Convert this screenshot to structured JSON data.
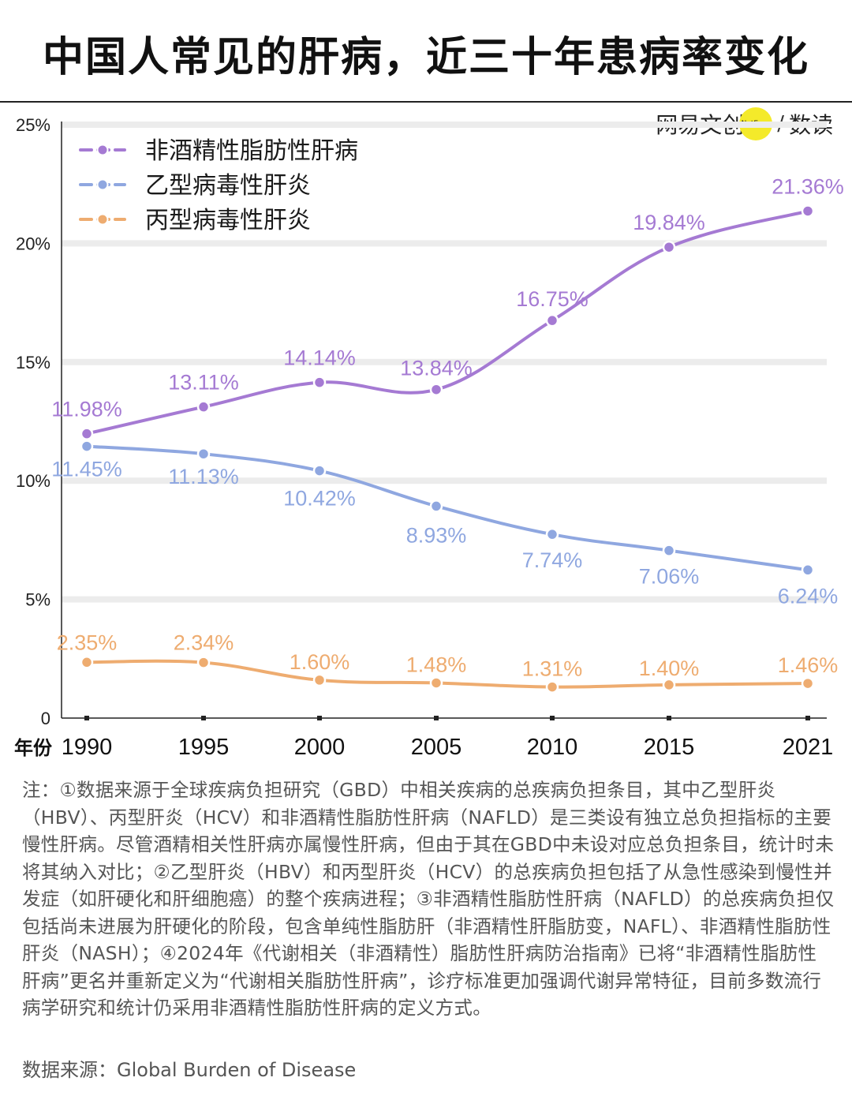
{
  "title": "中国人常见的肝病，近三十年患病率变化",
  "brand": {
    "name": "网易文创",
    "badge": "NetEase",
    "sub": "数读",
    "slash": "/"
  },
  "colors": {
    "nafld": "#a57ad3",
    "hbv": "#8fa7e0",
    "hcv": "#eeac70",
    "grid": "#ececec",
    "axis": "#222222"
  },
  "chart_data": {
    "type": "line",
    "title": "中国人常见的肝病，近三十年患病率变化",
    "xlabel": "年份",
    "ylabel": "",
    "x": [
      1990,
      1995,
      2000,
      2005,
      2010,
      2015,
      2021
    ],
    "x_tick_labels": [
      "1990",
      "1995",
      "2000",
      "2005",
      "2010",
      "2015",
      "2021"
    ],
    "y_ticks": [
      0,
      5,
      10,
      15,
      20,
      25
    ],
    "y_tick_labels": [
      "0",
      "5%",
      "10%",
      "15%",
      "20%",
      "25%"
    ],
    "ylim": [
      0,
      25
    ],
    "grid": true,
    "legend_position": "top-left",
    "series": [
      {
        "name": "非酒精性脂肪性肝病",
        "color": "#a57ad3",
        "values": [
          11.98,
          13.11,
          14.14,
          13.84,
          16.75,
          19.84,
          21.36
        ],
        "labels": [
          "11.98%",
          "13.11%",
          "14.14%",
          "13.84%",
          "16.75%",
          "19.84%",
          "21.36%"
        ]
      },
      {
        "name": "乙型病毒性肝炎",
        "color": "#8fa7e0",
        "values": [
          11.45,
          11.13,
          10.42,
          8.93,
          7.74,
          7.06,
          6.24
        ],
        "labels": [
          "11.45%",
          "11.13%",
          "10.42%",
          "8.93%",
          "7.74%",
          "7.06%",
          "6.24%"
        ]
      },
      {
        "name": "丙型病毒性肝炎",
        "color": "#eeac70",
        "values": [
          2.35,
          2.34,
          1.6,
          1.48,
          1.31,
          1.4,
          1.46
        ],
        "labels": [
          "2.35%",
          "2.34%",
          "1.60%",
          "1.48%",
          "1.31%",
          "1.40%",
          "1.46%"
        ]
      }
    ]
  },
  "notes": "注：①数据来源于全球疾病负担研究（GBD）中相关疾病的总疾病负担条目，其中乙型肝炎（HBV）、丙型肝炎（HCV）和非酒精性脂肪性肝病（NAFLD）是三类设有独立总负担指标的主要慢性肝病。尽管酒精相关性肝病亦属慢性肝病，但由于其在GBD中未设对应总负担条目，统计时未将其纳入对比；②乙型肝炎（HBV）和丙型肝炎（HCV）的总疾病负担包括了从急性感染到慢性并发症（如肝硬化和肝细胞癌）的整个疾病进程；③非酒精性脂肪性肝病（NAFLD）的总疾病负担仅包括尚未进展为肝硬化的阶段，包含单纯性脂肪肝（非酒精性肝脂肪变，NAFL）、非酒精性脂肪性肝炎（NASH）；④2024年《代谢相关（非酒精性）脂肪性肝病防治指南》已将“非酒精性脂肪性肝病”更名并重新定义为“代谢相关脂肪性肝病”，诊疗标准更加强调代谢异常特征，目前多数流行病学研究和统计仍采用非酒精性脂肪性肝病的定义方式。",
  "source": "数据来源：Global Burden of Disease"
}
